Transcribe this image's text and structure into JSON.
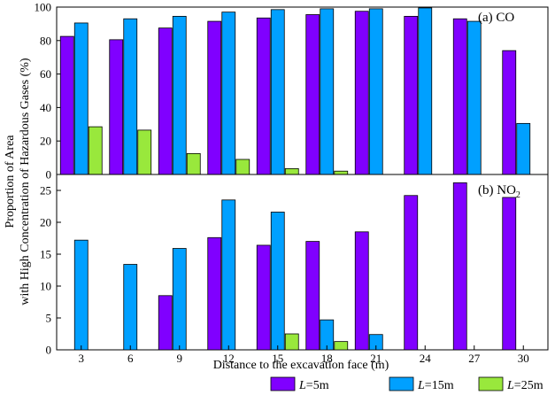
{
  "chart_data": {
    "type": "bar",
    "ylabel_line1": "Proportion of Area",
    "ylabel_line2": "with High Concentration of Hazardous Gases (%)",
    "xlabel": "Distance to the excavation face (m)",
    "categories": [
      "3",
      "6",
      "9",
      "12",
      "15",
      "18",
      "21",
      "24",
      "27",
      "30"
    ],
    "legend": [
      {
        "prefix": "L",
        "suffix": "=5m",
        "color": "#8000ff"
      },
      {
        "prefix": "L",
        "suffix": "=15m",
        "color": "#00a0ff"
      },
      {
        "prefix": "L",
        "suffix": "=25m",
        "color": "#99e83c"
      }
    ],
    "panels": [
      {
        "label": "(a) CO",
        "ylim": [
          0,
          100
        ],
        "yticks": [
          "0",
          "20",
          "40",
          "60",
          "80",
          "100"
        ],
        "series": [
          {
            "name": "L=5m",
            "values": [
              82.5,
              80.5,
              87.5,
              91.5,
              93.5,
              95.5,
              97.5,
              94.5,
              93.0,
              74.0
            ]
          },
          {
            "name": "L=15m",
            "values": [
              90.5,
              93.0,
              94.5,
              97.0,
              98.5,
              99.0,
              99.0,
              99.5,
              91.5,
              30.5
            ]
          },
          {
            "name": "L=25m",
            "values": [
              28.5,
              26.5,
              12.5,
              9.0,
              3.5,
              2.0,
              0,
              0,
              0,
              0
            ]
          }
        ]
      },
      {
        "label": "(b) NO",
        "label_sub": "2",
        "ylim": [
          0,
          27.5
        ],
        "yticks": [
          "0",
          "5",
          "10",
          "15",
          "20",
          "25"
        ],
        "series": [
          {
            "name": "L=5m",
            "values": [
              0,
              0,
              8.5,
              17.6,
              16.4,
              17.0,
              18.5,
              24.2,
              26.2,
              23.9
            ]
          },
          {
            "name": "L=15m",
            "values": [
              17.2,
              13.4,
              15.9,
              23.5,
              21.6,
              4.7,
              2.4,
              0,
              0,
              0
            ]
          },
          {
            "name": "L=25m",
            "values": [
              0,
              0,
              0,
              0,
              2.5,
              1.3,
              0,
              0,
              0,
              0
            ]
          }
        ]
      }
    ]
  }
}
